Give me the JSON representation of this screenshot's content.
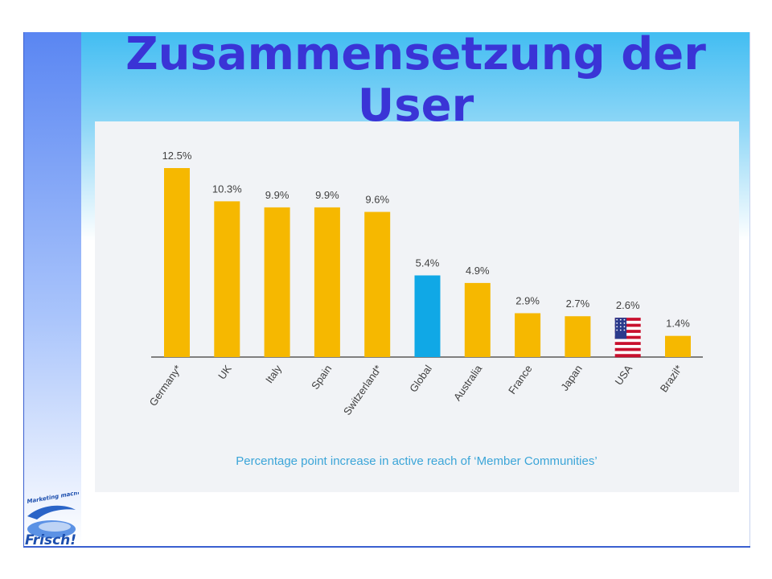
{
  "slide": {
    "title": "Zusammensetzung der User",
    "logo_text": {
      "top": "Marketing macht",
      "main": "Frisch!"
    }
  },
  "chart_data": {
    "type": "bar",
    "categories": [
      "Germany*",
      "UK",
      "Italy",
      "Spain",
      "Switzerland*",
      "Global",
      "Australia",
      "France",
      "Japan",
      "USA",
      "Brazil*"
    ],
    "values": [
      12.5,
      10.3,
      9.9,
      9.9,
      9.6,
      5.4,
      4.9,
      2.9,
      2.7,
      2.6,
      1.4
    ],
    "value_labels": [
      "12.5%",
      "10.3%",
      "9.9%",
      "9.9%",
      "9.6%",
      "5.4%",
      "4.9%",
      "2.9%",
      "2.7%",
      "2.6%",
      "1.4%"
    ],
    "bar_styles": [
      "gold",
      "gold",
      "gold",
      "gold",
      "gold",
      "blue",
      "gold",
      "gold",
      "gold",
      "us-flag",
      "gold"
    ],
    "colors": {
      "gold": "#f6b800",
      "blue": "#10a8e6",
      "axis": "#7f7f7f",
      "label": "#404040",
      "caption": "#3ba5d8"
    },
    "caption": "Percentage point increase in active reach of ‘Member Communities’",
    "ylim": [
      0,
      13.5
    ],
    "grid": false,
    "legend": "none"
  }
}
